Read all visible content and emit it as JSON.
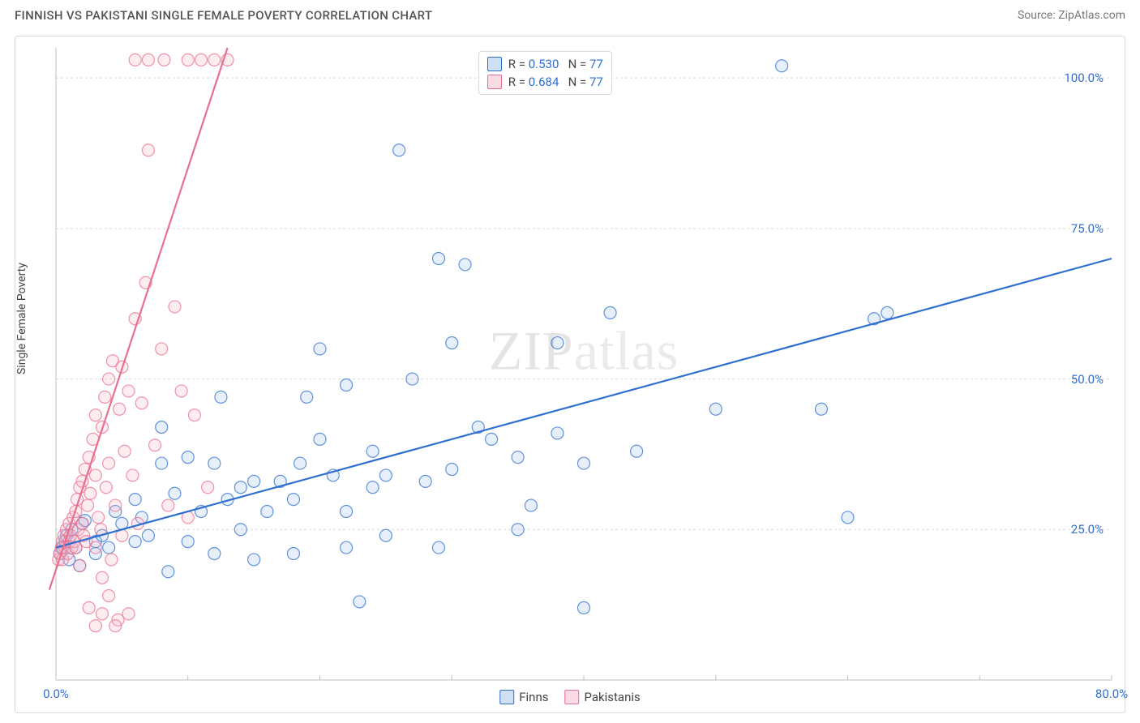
{
  "header": {
    "title": "FINNISH VS PAKISTANI SINGLE FEMALE POVERTY CORRELATION CHART",
    "source_label": "Source: ",
    "source_name": "ZipAtlas.com"
  },
  "chart": {
    "type": "scatter",
    "ylabel": "Single Female Poverty",
    "xlim": [
      0,
      80
    ],
    "ylim": [
      0,
      105
    ],
    "x_ticks_major": [
      0,
      10,
      20,
      30,
      40,
      50,
      60,
      70,
      80
    ],
    "x_tick_labels": [
      {
        "v": 0,
        "label": "0.0%"
      },
      {
        "v": 80,
        "label": "80.0%"
      }
    ],
    "y_gridlines": [
      25,
      50,
      75,
      100
    ],
    "y_tick_labels": [
      {
        "v": 25,
        "label": "25.0%"
      },
      {
        "v": 50,
        "label": "50.0%"
      },
      {
        "v": 75,
        "label": "75.0%"
      },
      {
        "v": 100,
        "label": "100.0%"
      }
    ],
    "grid_color": "#d9d9d9",
    "grid_dash": "3,3",
    "axis_color": "#bfbfbf",
    "background_color": "#ffffff",
    "marker_radius": 7.5,
    "marker_stroke_width": 1.2,
    "marker_fill_opacity": 0.25,
    "line_width": 2.2,
    "series": [
      {
        "name": "Finns",
        "color_stroke": "#2f6fd0",
        "color_fill": "#9fc2ec",
        "R": "0.530",
        "N": "77",
        "trend": {
          "x1": 0,
          "y1": 22,
          "x2": 80,
          "y2": 70
        },
        "points": [
          [
            0.3,
            21
          ],
          [
            0.5,
            22
          ],
          [
            0.7,
            23
          ],
          [
            0.8,
            24
          ],
          [
            1.0,
            20
          ],
          [
            1.2,
            25
          ],
          [
            1.5,
            22
          ],
          [
            1.8,
            19
          ],
          [
            2.0,
            26
          ],
          [
            2.2,
            26.5
          ],
          [
            3,
            21
          ],
          [
            3,
            23
          ],
          [
            3.5,
            24
          ],
          [
            4,
            22
          ],
          [
            4.5,
            28
          ],
          [
            5,
            26
          ],
          [
            6,
            23
          ],
          [
            6,
            30
          ],
          [
            6.5,
            27
          ],
          [
            7,
            24
          ],
          [
            8,
            36
          ],
          [
            8,
            42
          ],
          [
            8.5,
            18
          ],
          [
            9,
            31
          ],
          [
            10,
            23
          ],
          [
            10,
            37
          ],
          [
            11,
            28
          ],
          [
            12,
            21
          ],
          [
            12,
            36
          ],
          [
            12.5,
            47
          ],
          [
            13,
            30
          ],
          [
            14,
            32
          ],
          [
            14,
            25
          ],
          [
            15,
            33
          ],
          [
            15,
            20
          ],
          [
            16,
            28
          ],
          [
            17,
            33
          ],
          [
            18,
            21
          ],
          [
            18,
            30
          ],
          [
            18.5,
            36
          ],
          [
            19,
            47
          ],
          [
            20,
            40
          ],
          [
            20,
            55
          ],
          [
            21,
            34
          ],
          [
            22,
            22
          ],
          [
            22,
            28
          ],
          [
            22,
            49
          ],
          [
            23,
            13
          ],
          [
            24,
            32
          ],
          [
            24,
            38
          ],
          [
            25,
            24
          ],
          [
            25,
            34
          ],
          [
            26,
            88
          ],
          [
            27,
            50
          ],
          [
            28,
            33
          ],
          [
            29,
            22
          ],
          [
            29,
            70
          ],
          [
            30,
            56
          ],
          [
            30,
            35
          ],
          [
            31,
            69
          ],
          [
            32,
            42
          ],
          [
            33,
            40
          ],
          [
            35,
            25
          ],
          [
            35,
            37
          ],
          [
            36,
            29
          ],
          [
            38,
            41
          ],
          [
            38,
            56
          ],
          [
            40,
            36
          ],
          [
            40,
            12
          ],
          [
            42,
            61
          ],
          [
            44,
            38
          ],
          [
            50,
            45
          ],
          [
            55,
            102
          ],
          [
            58,
            45
          ],
          [
            60,
            27
          ],
          [
            62,
            60
          ],
          [
            63,
            61
          ]
        ]
      },
      {
        "name": "Pakistanis",
        "color_stroke": "#e96f8f",
        "color_fill": "#f6b9c8",
        "R": "0.684",
        "N": "77",
        "trend": {
          "x1": -0.5,
          "y1": 15,
          "x2": 13,
          "y2": 105
        },
        "points": [
          [
            0.2,
            20
          ],
          [
            0.3,
            21
          ],
          [
            0.4,
            22
          ],
          [
            0.5,
            23
          ],
          [
            0.5,
            20
          ],
          [
            0.6,
            24
          ],
          [
            0.7,
            22
          ],
          [
            0.8,
            25
          ],
          [
            0.9,
            21
          ],
          [
            1.0,
            23
          ],
          [
            1.0,
            26
          ],
          [
            1.1,
            24
          ],
          [
            1.2,
            22
          ],
          [
            1.3,
            27
          ],
          [
            1.4,
            23
          ],
          [
            1.5,
            28
          ],
          [
            1.5,
            22
          ],
          [
            1.6,
            30
          ],
          [
            1.7,
            25
          ],
          [
            1.8,
            32
          ],
          [
            1.8,
            19
          ],
          [
            2.0,
            26
          ],
          [
            2.0,
            33
          ],
          [
            2.1,
            24
          ],
          [
            2.2,
            35
          ],
          [
            2.3,
            23
          ],
          [
            2.4,
            29
          ],
          [
            2.5,
            37
          ],
          [
            2.5,
            12
          ],
          [
            2.6,
            31
          ],
          [
            2.8,
            40
          ],
          [
            3.0,
            22
          ],
          [
            3.0,
            34
          ],
          [
            3.0,
            44
          ],
          [
            3.2,
            27
          ],
          [
            3.4,
            25
          ],
          [
            3.5,
            42
          ],
          [
            3.5,
            17
          ],
          [
            3.7,
            47
          ],
          [
            3.8,
            32
          ],
          [
            4.0,
            50
          ],
          [
            4.0,
            36
          ],
          [
            4.0,
            14
          ],
          [
            4.2,
            20
          ],
          [
            4.3,
            53
          ],
          [
            4.5,
            29
          ],
          [
            4.7,
            10
          ],
          [
            4.8,
            45
          ],
          [
            5.0,
            52
          ],
          [
            5.0,
            24
          ],
          [
            5.2,
            38
          ],
          [
            5.5,
            48
          ],
          [
            5.5,
            11
          ],
          [
            5.8,
            34
          ],
          [
            6.0,
            60
          ],
          [
            6.0,
            103
          ],
          [
            6.2,
            26
          ],
          [
            6.5,
            46
          ],
          [
            6.8,
            66
          ],
          [
            7.0,
            88
          ],
          [
            7.0,
            103
          ],
          [
            7.5,
            39
          ],
          [
            8.0,
            55
          ],
          [
            8.2,
            103
          ],
          [
            8.5,
            29
          ],
          [
            9.0,
            62
          ],
          [
            9.5,
            48
          ],
          [
            10.0,
            103
          ],
          [
            10.0,
            27
          ],
          [
            10.5,
            44
          ],
          [
            11.0,
            103
          ],
          [
            11.5,
            32
          ],
          [
            12.0,
            103
          ],
          [
            13.0,
            103
          ],
          [
            3.0,
            9
          ],
          [
            3.5,
            11
          ],
          [
            4.5,
            9
          ]
        ]
      }
    ],
    "legend_top": {
      "rows": [
        {
          "swatch_fill": "#cfe0f5",
          "swatch_border": "#2f6fd0",
          "r_label": "R =",
          "r_value": "0.530",
          "n_label": "N =",
          "n_value": "77"
        },
        {
          "swatch_fill": "#fadbe3",
          "swatch_border": "#e96f8f",
          "r_label": "R =",
          "r_value": "0.684",
          "n_label": "N =",
          "n_value": "77"
        }
      ]
    },
    "legend_bottom": [
      {
        "swatch_fill": "#cfe0f5",
        "swatch_border": "#2f6fd0",
        "label": "Finns"
      },
      {
        "swatch_fill": "#fadbe3",
        "swatch_border": "#e96f8f",
        "label": "Pakistanis"
      }
    ],
    "watermark": {
      "text_a": "ZIP",
      "text_b": "atlas"
    }
  }
}
